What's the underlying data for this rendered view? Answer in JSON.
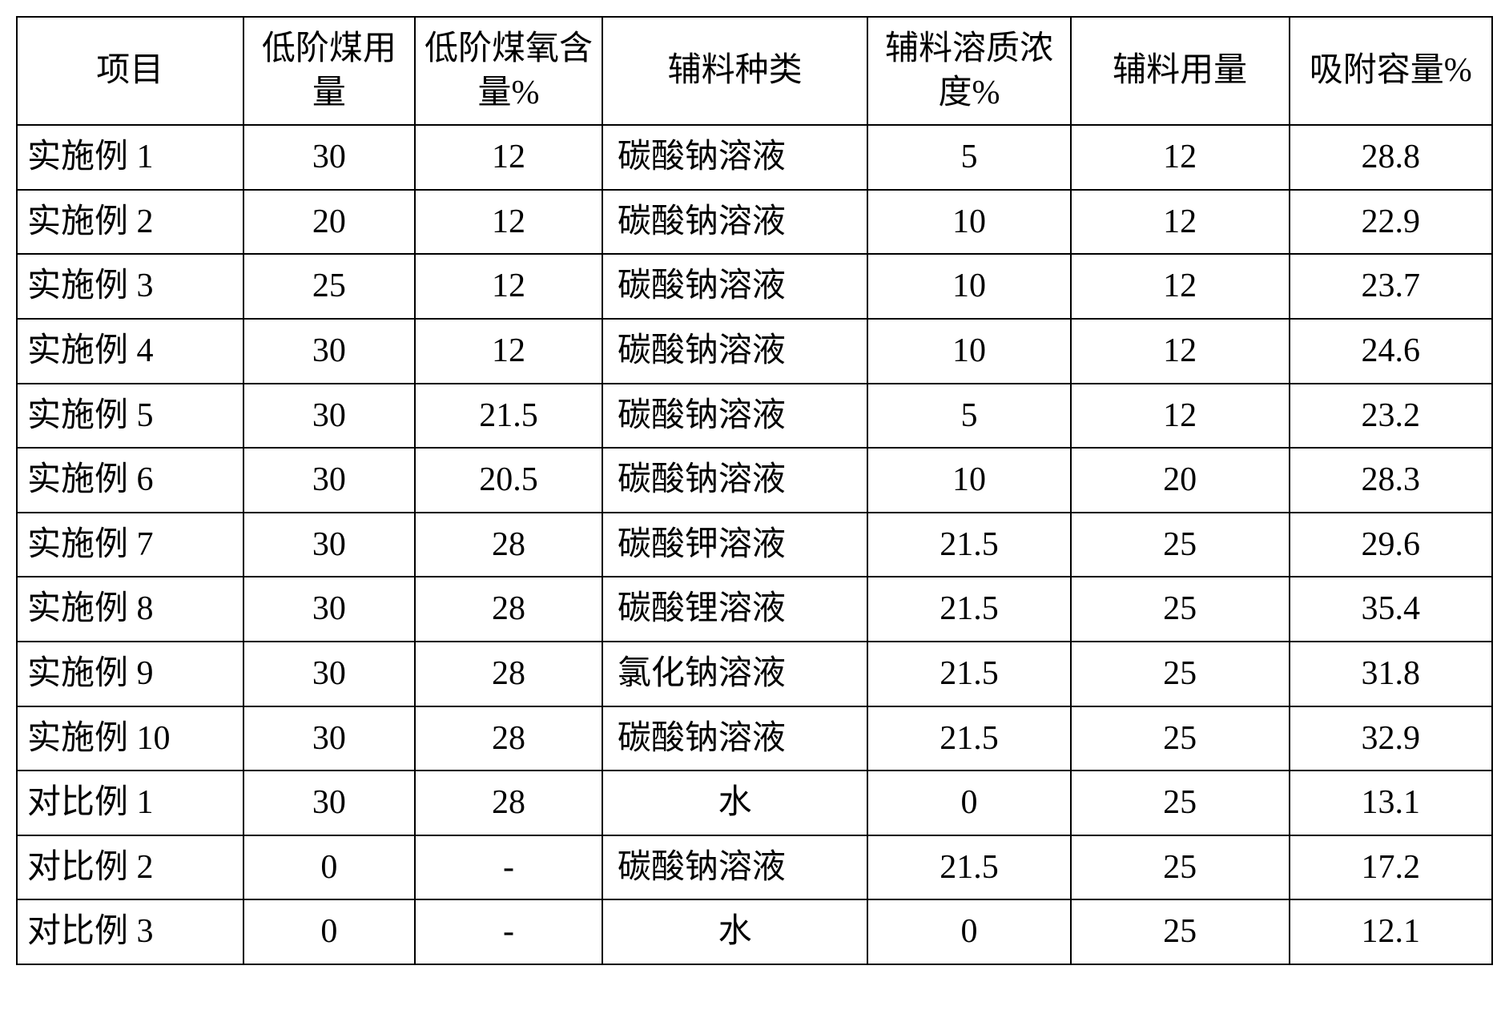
{
  "table": {
    "columns": [
      "项目",
      "低阶煤用量",
      "低阶煤氧含量%",
      "辅料种类",
      "辅料溶质浓度%",
      "辅料用量",
      "吸附容量%"
    ],
    "column_widths_pct": [
      14.5,
      11,
      12,
      17,
      13,
      14,
      13
    ],
    "header_fontsize": 42,
    "cell_fontsize": 42,
    "border_color": "#000000",
    "border_width": 2,
    "background_color": "#ffffff",
    "text_color": "#000000",
    "rows": [
      {
        "label": "实施例 1",
        "coal_amount": "30",
        "oxygen_content": "12",
        "aux_type": "碳酸钠溶液",
        "solute_conc": "5",
        "aux_amount": "12",
        "adsorption": "28.8"
      },
      {
        "label": "实施例 2",
        "coal_amount": "20",
        "oxygen_content": "12",
        "aux_type": "碳酸钠溶液",
        "solute_conc": "10",
        "aux_amount": "12",
        "adsorption": "22.9"
      },
      {
        "label": "实施例 3",
        "coal_amount": "25",
        "oxygen_content": "12",
        "aux_type": "碳酸钠溶液",
        "solute_conc": "10",
        "aux_amount": "12",
        "adsorption": "23.7"
      },
      {
        "label": "实施例 4",
        "coal_amount": "30",
        "oxygen_content": "12",
        "aux_type": "碳酸钠溶液",
        "solute_conc": "10",
        "aux_amount": "12",
        "adsorption": "24.6"
      },
      {
        "label": "实施例 5",
        "coal_amount": "30",
        "oxygen_content": "21.5",
        "aux_type": "碳酸钠溶液",
        "solute_conc": "5",
        "aux_amount": "12",
        "adsorption": "23.2"
      },
      {
        "label": "实施例 6",
        "coal_amount": "30",
        "oxygen_content": "20.5",
        "aux_type": "碳酸钠溶液",
        "solute_conc": "10",
        "aux_amount": "20",
        "adsorption": "28.3"
      },
      {
        "label": "实施例 7",
        "coal_amount": "30",
        "oxygen_content": "28",
        "aux_type": "碳酸钾溶液",
        "solute_conc": "21.5",
        "aux_amount": "25",
        "adsorption": "29.6"
      },
      {
        "label": "实施例 8",
        "coal_amount": "30",
        "oxygen_content": "28",
        "aux_type": "碳酸锂溶液",
        "solute_conc": "21.5",
        "aux_amount": "25",
        "adsorption": "35.4"
      },
      {
        "label": "实施例 9",
        "coal_amount": "30",
        "oxygen_content": "28",
        "aux_type": "氯化钠溶液",
        "solute_conc": "21.5",
        "aux_amount": "25",
        "adsorption": "31.8"
      },
      {
        "label": "实施例 10",
        "coal_amount": "30",
        "oxygen_content": "28",
        "aux_type": "碳酸钠溶液",
        "solute_conc": "21.5",
        "aux_amount": "25",
        "adsorption": "32.9"
      },
      {
        "label": "对比例 1",
        "coal_amount": "30",
        "oxygen_content": "28",
        "aux_type": "水",
        "aux_type_center": true,
        "solute_conc": "0",
        "aux_amount": "25",
        "adsorption": "13.1"
      },
      {
        "label": "对比例 2",
        "coal_amount": "0",
        "oxygen_content": "-",
        "aux_type": "碳酸钠溶液",
        "solute_conc": "21.5",
        "aux_amount": "25",
        "adsorption": "17.2"
      },
      {
        "label": "对比例 3",
        "coal_amount": "0",
        "oxygen_content": "-",
        "aux_type": "水",
        "aux_type_center": true,
        "solute_conc": "0",
        "aux_amount": "25",
        "adsorption": "12.1"
      }
    ]
  }
}
